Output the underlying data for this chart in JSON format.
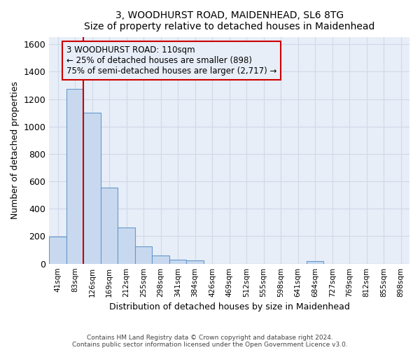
{
  "title": "3, WOODHURST ROAD, MAIDENHEAD, SL6 8TG",
  "subtitle": "Size of property relative to detached houses in Maidenhead",
  "xlabel": "Distribution of detached houses by size in Maidenhead",
  "ylabel": "Number of detached properties",
  "footer_line1": "Contains HM Land Registry data © Crown copyright and database right 2024.",
  "footer_line2": "Contains public sector information licensed under the Open Government Licence v3.0.",
  "bar_labels": [
    "41sqm",
    "83sqm",
    "126sqm",
    "169sqm",
    "212sqm",
    "255sqm",
    "298sqm",
    "341sqm",
    "384sqm",
    "426sqm",
    "469sqm",
    "512sqm",
    "555sqm",
    "598sqm",
    "641sqm",
    "684sqm",
    "727sqm",
    "769sqm",
    "812sqm",
    "855sqm",
    "898sqm"
  ],
  "bar_values": [
    197,
    1272,
    1100,
    555,
    265,
    125,
    60,
    30,
    22,
    0,
    0,
    0,
    0,
    0,
    0,
    18,
    0,
    0,
    0,
    0,
    0
  ],
  "bar_color": "#c8d9ef",
  "bar_edge_color": "#6699cc",
  "vline_x": 1.5,
  "vline_color": "#cc0000",
  "ylim": [
    0,
    1650
  ],
  "yticks": [
    0,
    200,
    400,
    600,
    800,
    1000,
    1200,
    1400,
    1600
  ],
  "annotation_text": "3 WOODHURST ROAD: 110sqm\n← 25% of detached houses are smaller (898)\n75% of semi-detached houses are larger (2,717) →",
  "bg_color": "#ffffff",
  "grid_color": "#d0d8e8",
  "plot_bg_color": "#e8eef8"
}
